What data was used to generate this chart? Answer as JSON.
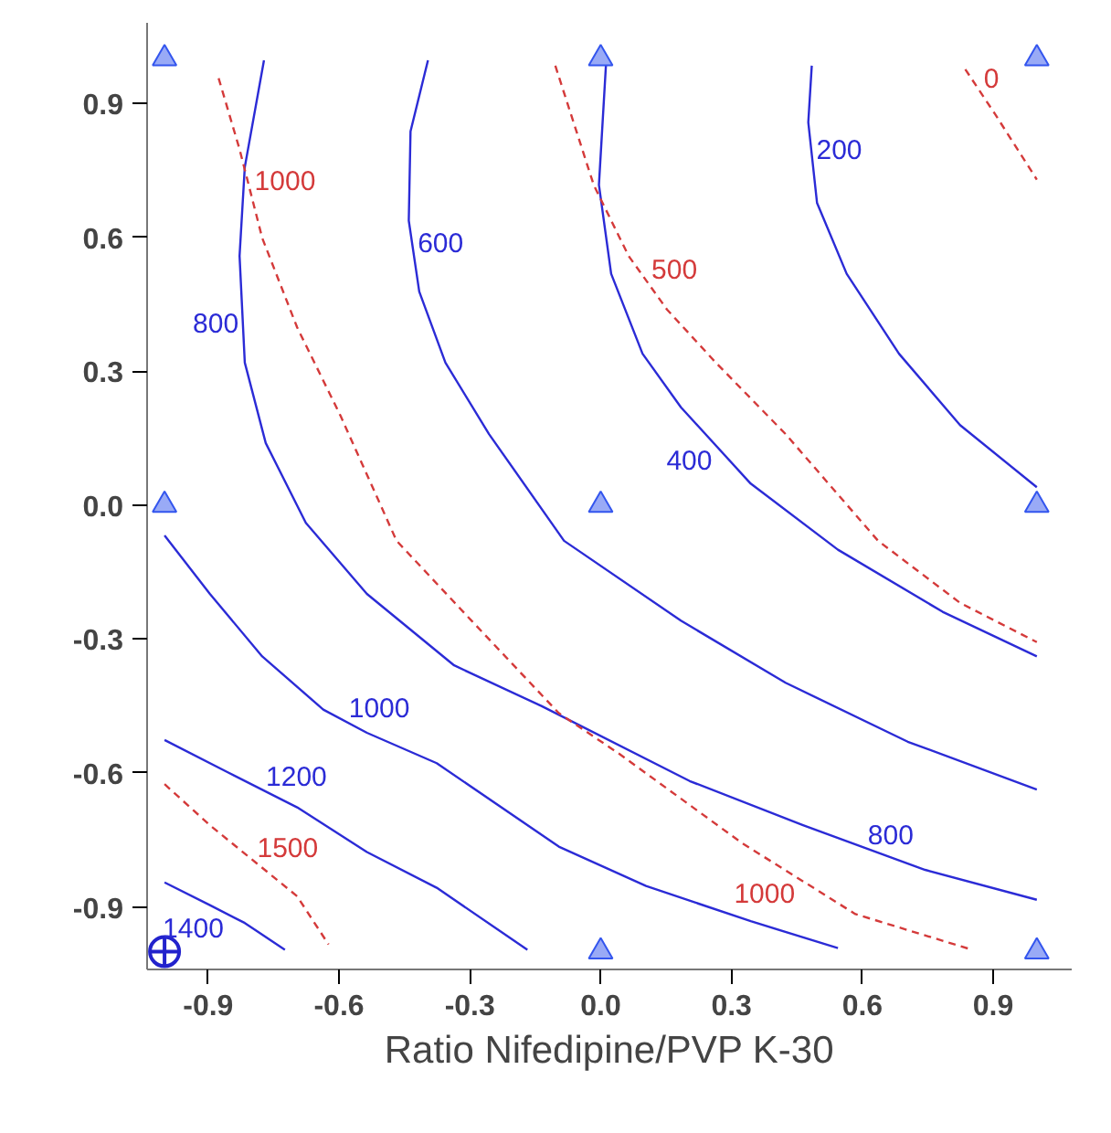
{
  "chart_data": {
    "type": "line",
    "xlabel": "Ratio Nifedipine/PVP K-30",
    "xlim": [
      -1.04,
      1.08
    ],
    "ylim": [
      -1.04,
      1.08
    ],
    "xticks": [
      -0.9,
      -0.6,
      -0.3,
      {
        "value": 0,
        "label": "0.0"
      },
      0.3,
      0.6,
      0.9
    ],
    "yticks": [
      -0.9,
      -0.6,
      -0.3,
      {
        "value": 0,
        "label": "0.0"
      },
      0.3,
      0.6,
      0.9
    ],
    "grid": false,
    "series": [
      {
        "color": "#2b2bd6",
        "line_style": "solid",
        "x": [
          0.484,
          0.476,
          0.496,
          0.564,
          0.684,
          0.824,
          1.0
        ],
        "values": [
          0.984,
          0.857,
          0.677,
          0.518,
          0.339,
          0.179,
          0.04
        ]
      },
      {
        "color": "#2b2bd6",
        "line_style": "solid",
        "x": [
          0.012,
          -0.004,
          0.024,
          0.096,
          0.184,
          0.344,
          0.544,
          0.784,
          1.0
        ],
        "values": [
          0.984,
          0.717,
          0.518,
          0.339,
          0.219,
          0.048,
          -0.1,
          -0.239,
          -0.339
        ]
      },
      {
        "color": "#2b2bd6",
        "line_style": "solid",
        "x": [
          -0.396,
          -0.436,
          -0.44,
          -0.416,
          -0.356,
          -0.256,
          -0.084,
          0.184,
          0.424,
          0.704,
          1.0
        ],
        "values": [
          0.996,
          0.837,
          0.637,
          0.478,
          0.319,
          0.159,
          -0.08,
          -0.259,
          -0.398,
          -0.53,
          -0.637
        ]
      },
      {
        "color": "#2b2bd6",
        "line_style": "solid",
        "x": [
          -0.772,
          -0.816,
          -0.828,
          -0.816,
          -0.768,
          -0.676,
          -0.536,
          -0.336,
          -0.136,
          0.204,
          0.464,
          0.744,
          1.0
        ],
        "values": [
          0.996,
          0.757,
          0.558,
          0.319,
          0.139,
          -0.04,
          -0.199,
          -0.359,
          -0.45,
          -0.618,
          -0.717,
          -0.817,
          -0.884
        ]
      },
      {
        "color": "#2b2bd6",
        "line_style": "solid",
        "x": [
          -1.0,
          -0.896,
          -0.776,
          -0.636,
          -0.536,
          -0.376,
          -0.096,
          0.104,
          0.344,
          0.544
        ],
        "values": [
          -0.068,
          -0.199,
          -0.339,
          -0.458,
          -0.51,
          -0.578,
          -0.765,
          -0.853,
          -0.932,
          -0.992
        ]
      },
      {
        "color": "#2b2bd6",
        "line_style": "solid",
        "x": [
          -1.0,
          -0.856,
          -0.696,
          -0.536,
          -0.376,
          -0.168
        ],
        "values": [
          -0.526,
          -0.598,
          -0.677,
          -0.777,
          -0.857,
          -0.996
        ]
      },
      {
        "color": "#2b2bd6",
        "line_style": "solid",
        "x": [
          -1.0,
          -0.896,
          -0.816,
          -0.724
        ],
        "values": [
          -0.845,
          -0.896,
          -0.936,
          -0.996
        ]
      },
      {
        "color": "#d43a3a",
        "line_style": "dashed",
        "x": [
          0.836,
          0.904,
          1.0
        ],
        "values": [
          0.976,
          0.876,
          0.729
        ]
      },
      {
        "color": "#d43a3a",
        "line_style": "dashed",
        "x": [
          -0.104,
          -0.016,
          0.064,
          0.152,
          0.264,
          0.424,
          0.636,
          0.824,
          1.0
        ],
        "values": [
          0.984,
          0.717,
          0.558,
          0.438,
          0.319,
          0.159,
          -0.08,
          -0.219,
          -0.307
        ]
      },
      {
        "color": "#d43a3a",
        "line_style": "dashed",
        "x": [
          -0.876,
          -0.828,
          -0.776,
          -0.696,
          -0.596,
          -0.468,
          -0.296,
          -0.096,
          0.044,
          0.324,
          0.584,
          0.852
        ],
        "values": [
          0.956,
          0.797,
          0.598,
          0.398,
          0.199,
          -0.08,
          -0.259,
          -0.466,
          -0.558,
          -0.757,
          -0.916,
          -0.996
        ]
      },
      {
        "color": "#d43a3a",
        "line_style": "dashed",
        "x": [
          -1.0,
          -0.896,
          -0.696,
          -0.624
        ],
        "values": [
          -0.625,
          -0.717,
          -0.876,
          -0.984
        ]
      },
      {
        "type": "scatter",
        "color": "#3355ee",
        "marker": "triangle",
        "x": [
          -1,
          0,
          1,
          -1,
          0,
          1,
          0,
          1
        ],
        "values": [
          1,
          1,
          1,
          0,
          0,
          0,
          -1,
          -1
        ]
      },
      {
        "type": "scatter",
        "color": "#2222cc",
        "marker": "circle",
        "x": [
          -1
        ],
        "values": [
          -1
        ]
      }
    ],
    "annotations": [
      {
        "text": "200",
        "x": 0.486,
        "y": 0.767
      },
      {
        "text": "400",
        "x": 0.264,
        "y": 0.1335
      },
      {
        "text": "600",
        "x": -0.428,
        "y": 0.5575
      },
      {
        "text": "800",
        "x": -0.822,
        "y": 0.4385
      },
      {
        "text": "800",
        "x": 0.604,
        "y": -0.767
      },
      {
        "text": "1000",
        "x": -0.586,
        "y": -0.484
      },
      {
        "text": "1200",
        "x": -0.776,
        "y": -0.6375
      },
      {
        "text": "1400",
        "x": -0.856,
        "y": -0.916
      },
      {
        "text": "0",
        "x": 0.87,
        "y": 0.926
      },
      {
        "text": "500",
        "x": 0.108,
        "y": 0.498
      },
      {
        "text": "1000",
        "x": -0.802,
        "y": 0.6975
      },
      {
        "text": "1000",
        "x": 0.454,
        "y": -0.8365
      },
      {
        "text": "1500",
        "x": -0.796,
        "y": -0.7965
      }
    ]
  }
}
